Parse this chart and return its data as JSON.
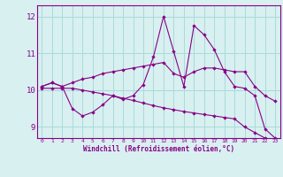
{
  "x": [
    0,
    1,
    2,
    3,
    4,
    5,
    6,
    7,
    8,
    9,
    10,
    11,
    12,
    13,
    14,
    15,
    16,
    17,
    18,
    19,
    20,
    21,
    22,
    23
  ],
  "line1": [
    10.1,
    10.2,
    10.1,
    9.5,
    9.3,
    9.4,
    9.6,
    9.85,
    9.75,
    9.85,
    10.15,
    10.9,
    12.0,
    11.05,
    10.1,
    11.75,
    11.5,
    11.1,
    10.5,
    10.1,
    10.05,
    9.85,
    8.95,
    8.7
  ],
  "line2": [
    10.1,
    10.2,
    10.1,
    10.2,
    10.3,
    10.35,
    10.45,
    10.5,
    10.55,
    10.6,
    10.65,
    10.7,
    10.75,
    10.45,
    10.35,
    10.5,
    10.6,
    10.6,
    10.55,
    10.5,
    10.5,
    10.1,
    9.85,
    9.7
  ],
  "line3": [
    10.05,
    10.05,
    10.05,
    10.05,
    10.0,
    9.95,
    9.9,
    9.85,
    9.78,
    9.72,
    9.65,
    9.58,
    9.52,
    9.47,
    9.42,
    9.38,
    9.34,
    9.3,
    9.26,
    9.22,
    9.0,
    8.85,
    8.7,
    8.65
  ],
  "color": "#880088",
  "bg_color": "#d8f0f0",
  "grid_color": "#aadada",
  "xlabel": "Windchill (Refroidissement éolien,°C)",
  "ylim": [
    8.7,
    12.3
  ],
  "xlim": [
    -0.5,
    23.5
  ],
  "yticks": [
    9,
    10,
    11,
    12
  ],
  "xticks": [
    0,
    1,
    2,
    3,
    4,
    5,
    6,
    7,
    8,
    9,
    10,
    11,
    12,
    13,
    14,
    15,
    16,
    17,
    18,
    19,
    20,
    21,
    22,
    23
  ]
}
